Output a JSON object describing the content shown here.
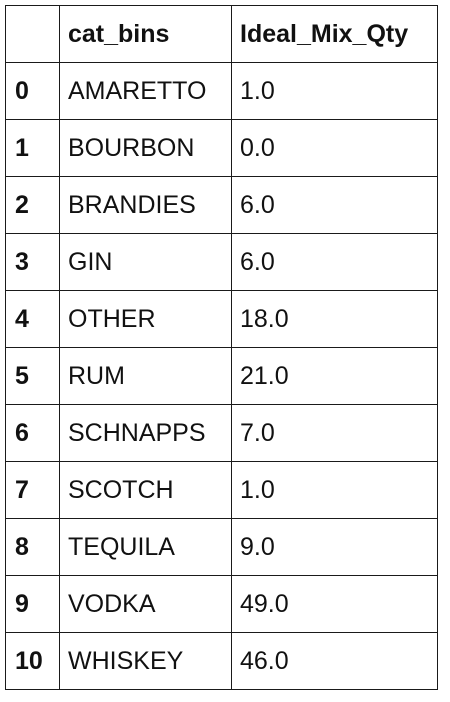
{
  "table": {
    "headers": [
      "",
      "cat_bins",
      "Ideal_Mix_Qty"
    ],
    "rows": [
      {
        "index": "0",
        "cat_bins": "AMARETTO",
        "ideal_mix_qty": "1.0"
      },
      {
        "index": "1",
        "cat_bins": "BOURBON",
        "ideal_mix_qty": "0.0"
      },
      {
        "index": "2",
        "cat_bins": "BRANDIES",
        "ideal_mix_qty": "6.0"
      },
      {
        "index": "3",
        "cat_bins": "GIN",
        "ideal_mix_qty": "6.0"
      },
      {
        "index": "4",
        "cat_bins": "OTHER",
        "ideal_mix_qty": "18.0"
      },
      {
        "index": "5",
        "cat_bins": "RUM",
        "ideal_mix_qty": "21.0"
      },
      {
        "index": "6",
        "cat_bins": "SCHNAPPS",
        "ideal_mix_qty": "7.0"
      },
      {
        "index": "7",
        "cat_bins": "SCOTCH",
        "ideal_mix_qty": "1.0"
      },
      {
        "index": "8",
        "cat_bins": "TEQUILA",
        "ideal_mix_qty": "9.0"
      },
      {
        "index": "9",
        "cat_bins": "VODKA",
        "ideal_mix_qty": "49.0"
      },
      {
        "index": "10",
        "cat_bins": "WHISKEY",
        "ideal_mix_qty": "46.0"
      }
    ]
  }
}
